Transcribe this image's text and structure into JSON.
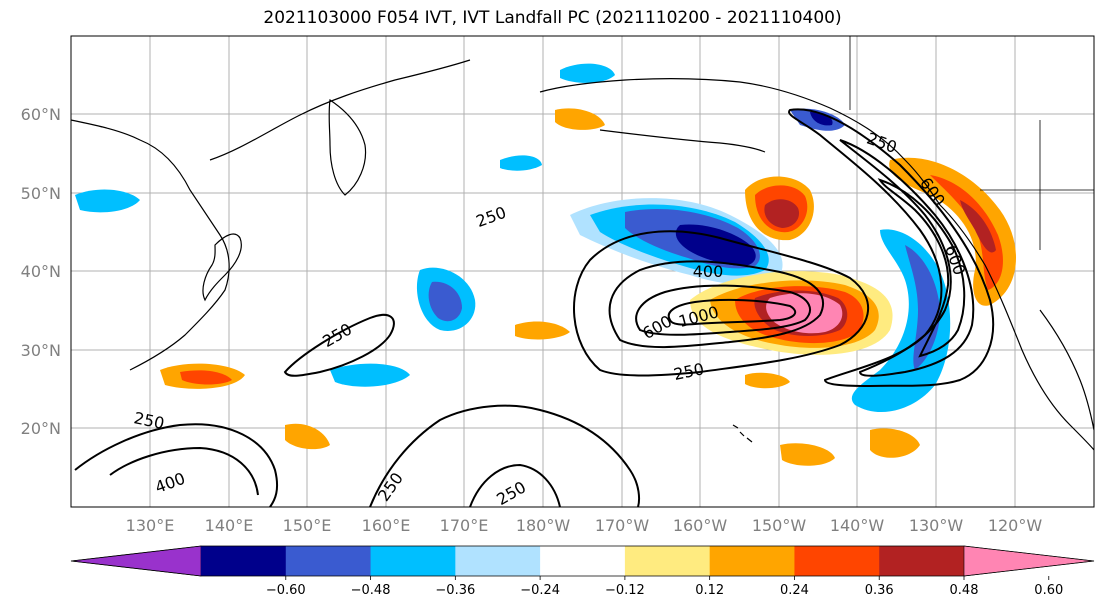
{
  "title": "2021103000 F054 IVT, IVT Landfall PC (2021110200 - 2021110400)",
  "lat_ticks": [
    "60°N",
    "50°N",
    "40°N",
    "30°N",
    "20°N"
  ],
  "lon_ticks": [
    "130°E",
    "140°E",
    "150°E",
    "160°E",
    "170°E",
    "180°W",
    "170°W",
    "160°W",
    "150°W",
    "140°W",
    "130°W",
    "120°W"
  ],
  "colorbar": {
    "tick_labels": [
      "−0.60",
      "−0.48",
      "−0.36",
      "−0.24",
      "−0.12",
      "0.12",
      "0.24",
      "0.36",
      "0.48",
      "0.60"
    ],
    "colors": [
      "#9932cc",
      "#00008b",
      "#3a5bd0",
      "#00bfff",
      "#b0e2ff",
      "#ffffff",
      "#ffeb80",
      "#ffa500",
      "#ff4500",
      "#b22222",
      "#ff85b3"
    ]
  },
  "contour_labels": [
    "250",
    "250",
    "250",
    "250",
    "250",
    "250",
    "250",
    "400",
    "400",
    "600",
    "600",
    "1000",
    "600"
  ]
}
